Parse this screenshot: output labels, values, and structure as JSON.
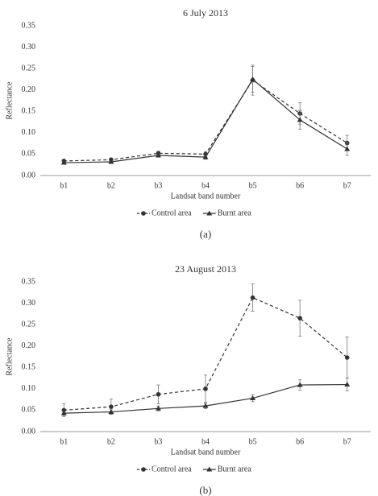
{
  "chart_data": [
    {
      "type": "line",
      "title": "6 July 2013",
      "x_label": "Landsat band number",
      "y_label": "Reflectance",
      "caption": "(a)",
      "categories": [
        "b1",
        "b2",
        "b3",
        "b4",
        "b5",
        "b6",
        "b7"
      ],
      "ylim": [
        0,
        0.35
      ],
      "yticks": [
        {
          "value": 0,
          "label": "0.00"
        },
        {
          "value": 0.05,
          "label": "0.05"
        },
        {
          "value": 0.1,
          "label": "0.10"
        },
        {
          "value": 0.15,
          "label": "0.15"
        },
        {
          "value": 0.2,
          "label": "0.20"
        },
        {
          "value": 0.25,
          "label": "0.25"
        },
        {
          "value": 0.3,
          "label": "0.30"
        },
        {
          "value": 0.35,
          "label": "0.35"
        }
      ],
      "series": [
        {
          "name": "Control area",
          "color": "#333333",
          "line_style": "dashed",
          "marker": "circle",
          "values": [
            0.034,
            0.037,
            0.052,
            0.05,
            0.223,
            0.145,
            0.076
          ],
          "errors": [
            0.004,
            0.004,
            0.005,
            0.006,
            0.035,
            0.025,
            0.018
          ]
        },
        {
          "name": "Burnt area",
          "color": "#333333",
          "line_style": "solid",
          "marker": "triangle",
          "values": [
            0.03,
            0.032,
            0.047,
            0.043,
            0.225,
            0.13,
            0.062
          ],
          "errors": [
            0.003,
            0.003,
            0.004,
            0.005,
            0.03,
            0.022,
            0.015
          ]
        }
      ]
    },
    {
      "type": "line",
      "title": "23 August 2013",
      "x_label": "Landsat band number",
      "y_label": "Reflectance",
      "caption": "(b)",
      "categories": [
        "b1",
        "b2",
        "b3",
        "b4",
        "b5",
        "b6",
        "b7"
      ],
      "ylim": [
        0,
        0.35
      ],
      "yticks": [
        {
          "value": 0,
          "label": "0.00"
        },
        {
          "value": 0.05,
          "label": "0.05"
        },
        {
          "value": 0.1,
          "label": "0.10"
        },
        {
          "value": 0.15,
          "label": "0.15"
        },
        {
          "value": 0.2,
          "label": "0.20"
        },
        {
          "value": 0.25,
          "label": "0.25"
        },
        {
          "value": 0.3,
          "label": "0.30"
        },
        {
          "value": 0.35,
          "label": "0.35"
        }
      ],
      "series": [
        {
          "name": "Control area",
          "color": "#333333",
          "line_style": "dashed",
          "marker": "circle",
          "values": [
            0.05,
            0.058,
            0.087,
            0.1,
            0.313,
            0.265,
            0.173
          ],
          "errors": [
            0.015,
            0.018,
            0.022,
            0.032,
            0.032,
            0.042,
            0.048
          ]
        },
        {
          "name": "Burnt area",
          "color": "#333333",
          "line_style": "solid",
          "marker": "triangle",
          "values": [
            0.043,
            0.046,
            0.054,
            0.06,
            0.078,
            0.109,
            0.11
          ],
          "errors": [
            0.005,
            0.005,
            0.006,
            0.006,
            0.008,
            0.012,
            0.015
          ]
        }
      ]
    }
  ]
}
